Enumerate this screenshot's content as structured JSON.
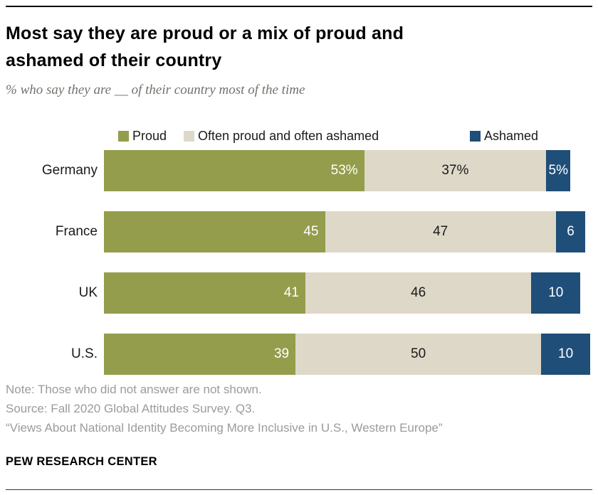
{
  "header": {
    "title_lines": [
      "Most say they are proud or a mix of proud and",
      "ashamed of their country"
    ],
    "subtitle": "% who say they are __ of their country most of the time"
  },
  "footer": {
    "note": "Note: Those who did not answer are not shown.",
    "source": "Source: Fall 2020 Global Attitudes Survey. Q3.",
    "quote": "“Views About National Identity Becoming More Inclusive in U.S., Western Europe”",
    "brand": "PEW RESEARCH CENTER"
  },
  "colors": {
    "proud": "#949D4C",
    "mixed": "#DED8C8",
    "ashamed": "#1F4E79",
    "footer_text": "#9B9B9B",
    "subtitle_text": "#75716C"
  },
  "chart_data": {
    "type": "bar",
    "orientation": "horizontal",
    "stacked": true,
    "categories": [
      "Germany",
      "France",
      "UK",
      "U.S."
    ],
    "series": [
      {
        "name": "Proud",
        "color": "#949D4C",
        "values": [
          53,
          45,
          41,
          39
        ],
        "labels": [
          "53%",
          "45",
          "41",
          "39"
        ]
      },
      {
        "name": "Often proud and often ashamed",
        "color": "#DED8C8",
        "values": [
          37,
          47,
          46,
          50
        ],
        "labels": [
          "37%",
          "47",
          "46",
          "50"
        ]
      },
      {
        "name": "Ashamed",
        "color": "#1F4E79",
        "values": [
          5,
          6,
          10,
          10
        ],
        "labels": [
          "5%",
          "6",
          "10",
          "10"
        ]
      }
    ],
    "value_label_colors": [
      "#FFFFFF",
      "#1A1A1A",
      "#FFFFFF"
    ],
    "xlim": [
      0,
      100
    ],
    "legend_position": "top",
    "grid": false
  }
}
